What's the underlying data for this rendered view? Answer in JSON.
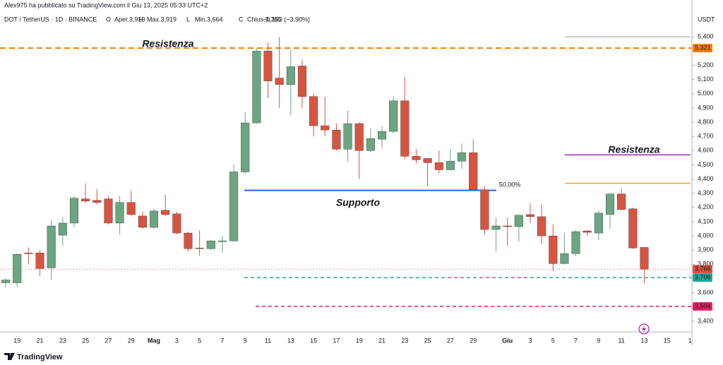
{
  "header": {
    "publisher": "Alex975 ha pubblicato su TradingView.com il Giu 13, 2025 05:33 UTC+2",
    "symbol": "DOT / TetherUS · 1D · BINANCE",
    "ohlc": [
      {
        "label": "O",
        "text": "Aper.3,919"
      },
      {
        "label": "H",
        "text": "Max.3,919"
      },
      {
        "label": "L",
        "text": "Min.3,664"
      },
      {
        "label": "C",
        "text": "Chius.3,766"
      }
    ],
    "change": "−0,153 (−3,90%)",
    "currency": "USDT",
    "brand": "TradingView"
  },
  "chart_data": {
    "type": "candlestick",
    "categories": [
      null,
      "19",
      null,
      "21",
      null,
      "23",
      null,
      "25",
      null,
      "27",
      null,
      "29",
      null,
      "Mag",
      null,
      "3",
      null,
      "5",
      null,
      "7",
      null,
      "9",
      null,
      "11",
      null,
      "13",
      null,
      "15",
      null,
      "17",
      null,
      "19",
      null,
      "21",
      null,
      "23",
      null,
      "25",
      null,
      "27",
      null,
      "29",
      null,
      null,
      "Giu",
      null,
      "3",
      null,
      "5",
      null,
      "7",
      null,
      "9",
      null,
      "11",
      null,
      "13",
      null,
      "15",
      null,
      "1"
    ],
    "open": [
      3670,
      3670,
      3880,
      3880,
      3775,
      4005,
      4090,
      4260,
      4250,
      4260,
      4090,
      4235,
      4140,
      4060,
      4180,
      4155,
      4020,
      3915,
      3910,
      3965,
      3965,
      4450,
      4795,
      5300,
      5110,
      5065,
      5195,
      4980,
      4775,
      4745,
      4610,
      4790,
      4600,
      4680,
      4735,
      4950,
      4560,
      4545,
      4515,
      4465,
      4525,
      4585,
      4325,
      4045,
      4070,
      4065,
      4150,
      4135,
      4000,
      3805,
      3875,
      4035,
      4020,
      4150,
      4295,
      4190,
      3919,
      null,
      null,
      null,
      null
    ],
    "high": [
      3700,
      3880,
      3920,
      3900,
      4110,
      4130,
      4280,
      4370,
      4330,
      4280,
      4280,
      4320,
      4170,
      4190,
      4290,
      4170,
      4030,
      4040,
      3970,
      4000,
      4500,
      4870,
      5320,
      5360,
      5400,
      5310,
      5240,
      5000,
      4980,
      4790,
      4880,
      4800,
      4760,
      4770,
      4980,
      5120,
      4610,
      4540,
      4600,
      4610,
      4650,
      4680,
      4350,
      4130,
      4130,
      4150,
      4230,
      4220,
      4080,
      4020,
      4040,
      4040,
      4180,
      4300,
      4330,
      4200,
      3919,
      null,
      null,
      null,
      null
    ],
    "low": [
      3640,
      3640,
      3800,
      3720,
      3690,
      3930,
      4060,
      4230,
      4220,
      4080,
      4010,
      4140,
      4050,
      4050,
      4140,
      4010,
      3890,
      3860,
      3900,
      3880,
      3960,
      4440,
      4790,
      4970,
      4900,
      4850,
      4900,
      4700,
      4700,
      4600,
      4520,
      4400,
      4590,
      4620,
      4720,
      4540,
      4510,
      4350,
      4440,
      4460,
      4470,
      4320,
      4010,
      3890,
      3930,
      3960,
      4090,
      3940,
      3750,
      3800,
      3860,
      4000,
      3970,
      4050,
      4180,
      3910,
      3664,
      null,
      null,
      null,
      null
    ],
    "close": [
      3690,
      3870,
      3875,
      3770,
      4070,
      4090,
      4265,
      4245,
      4235,
      4090,
      4235,
      4150,
      4060,
      4175,
      4150,
      4020,
      3910,
      3910,
      3965,
      3965,
      4450,
      4795,
      5300,
      5090,
      5065,
      5190,
      4980,
      4775,
      4745,
      4610,
      4790,
      4600,
      4685,
      4735,
      4950,
      4560,
      4535,
      4515,
      4465,
      4525,
      4585,
      4325,
      4045,
      4070,
      4065,
      4145,
      4135,
      4000,
      3805,
      3875,
      4030,
      4025,
      4160,
      4295,
      4185,
      3915,
      3766,
      null,
      null,
      null,
      null
    ],
    "up_color": "#6ba583",
    "down_color": "#d75442",
    "ylim": [
      3325,
      5570
    ],
    "yticks": [
      {
        "value": 3400,
        "label": "3,400"
      },
      {
        "value": 3600,
        "label": "3,600"
      },
      {
        "value": 3800,
        "label": "3,800"
      },
      {
        "value": 3900,
        "label": "3,900"
      },
      {
        "value": 4000,
        "label": "4,000"
      },
      {
        "value": 4100,
        "label": "4,100"
      },
      {
        "value": 4200,
        "label": "4,200"
      },
      {
        "value": 4300,
        "label": "4,300"
      },
      {
        "value": 4400,
        "label": "4,400"
      },
      {
        "value": 4500,
        "label": "4,500"
      },
      {
        "value": 4600,
        "label": "4,600"
      },
      {
        "value": 4700,
        "label": "4,700"
      },
      {
        "value": 4800,
        "label": "4,800"
      },
      {
        "value": 4900,
        "label": "4,900"
      },
      {
        "value": 5000,
        "label": "5,000"
      },
      {
        "value": 5100,
        "label": "5,100"
      },
      {
        "value": 5200,
        "label": "5,200"
      },
      {
        "value": 5400,
        "label": "5,400"
      }
    ],
    "levels": [
      {
        "value": 5321,
        "label": "5,321",
        "color": "#f57c00"
      },
      {
        "value": 3766,
        "label": "3,766",
        "color": "#d75442"
      },
      {
        "value": 3706,
        "label": "3,706",
        "color": "#26a69a"
      },
      {
        "value": 3504,
        "label": "3,504",
        "color": "#e91e63"
      },
      {
        "value": 4320,
        "color": "#2962ff"
      },
      {
        "value": 4570,
        "color": "#9c27b0"
      },
      {
        "value": 4370,
        "color": "#f5a623"
      },
      {
        "value": 5400,
        "color": "#bdbdbd"
      }
    ],
    "annotations": [
      {
        "text": "Resistenza",
        "color": "#e8503e"
      },
      {
        "text": "Supporto",
        "color": "#2f6fdb"
      },
      {
        "text": "Resistenza",
        "color": "#9c27b0"
      },
      {
        "text": "50,00%",
        "color": "#2962ff"
      }
    ]
  }
}
